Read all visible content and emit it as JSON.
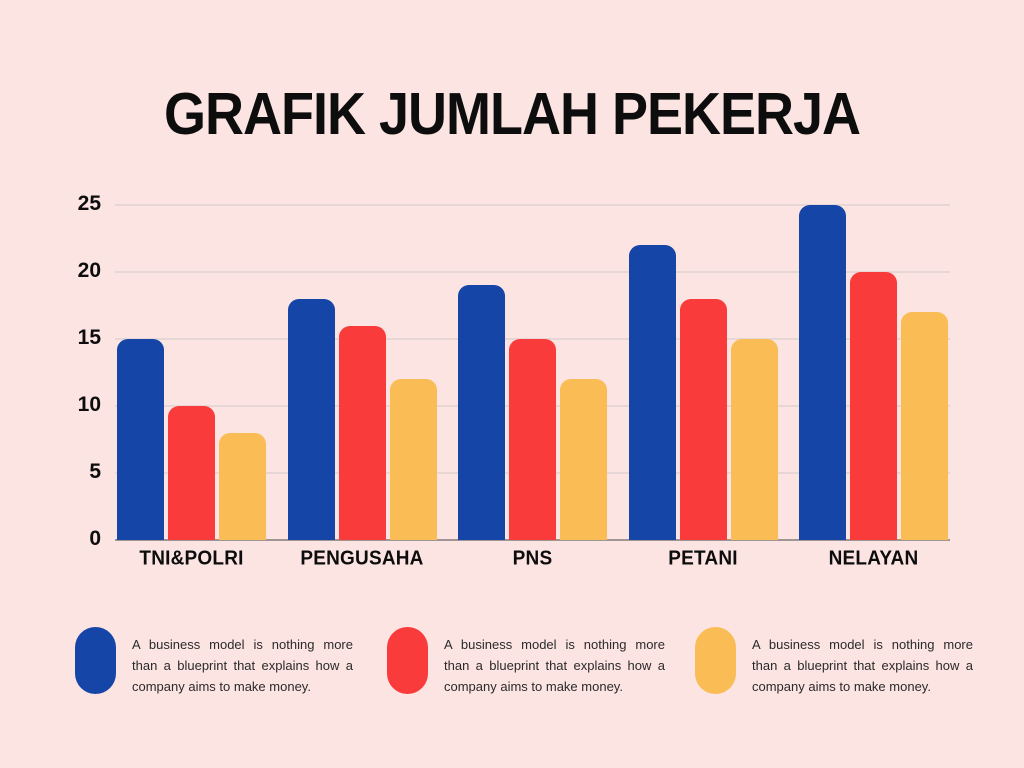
{
  "title": "GRAFIK JUMLAH PEKERJA",
  "colors": {
    "background": "#FCE4E3",
    "blue": "#1445A7",
    "red": "#F93B3B",
    "yellow": "#FABC55",
    "gridline": "#E6D6D6",
    "baseline": "#A09595",
    "text": "#0D0D0D"
  },
  "chart_data": {
    "type": "bar",
    "title": "GRAFIK JUMLAH PEKERJA",
    "categories": [
      "TNI&POLRI",
      "PENGUSAHA",
      "PNS",
      "PETANI",
      "NELAYAN"
    ],
    "series": [
      {
        "name": "blue",
        "color": "#1445A7",
        "values": [
          15,
          18,
          19,
          22,
          25
        ]
      },
      {
        "name": "red",
        "color": "#F93B3B",
        "values": [
          10,
          16,
          15,
          18,
          20
        ]
      },
      {
        "name": "yellow",
        "color": "#FABC55",
        "values": [
          8,
          12,
          12,
          15,
          17
        ]
      }
    ],
    "y_ticks": [
      25,
      20,
      15,
      10,
      5,
      0
    ],
    "ylim": [
      0,
      25
    ],
    "grid": true,
    "legend_position": "bottom",
    "xlabel": "",
    "ylabel": ""
  },
  "legend": {
    "items": [
      {
        "color": "#1445A7",
        "text": "A business model is nothing more than a blueprint that explains how a company aims to make money."
      },
      {
        "color": "#F93B3B",
        "text": "A business model is nothing more than a blueprint that explains how a company aims to make money."
      },
      {
        "color": "#FABC55",
        "text": "A business model is nothing more than a blueprint that explains how a company aims to make money."
      }
    ]
  }
}
